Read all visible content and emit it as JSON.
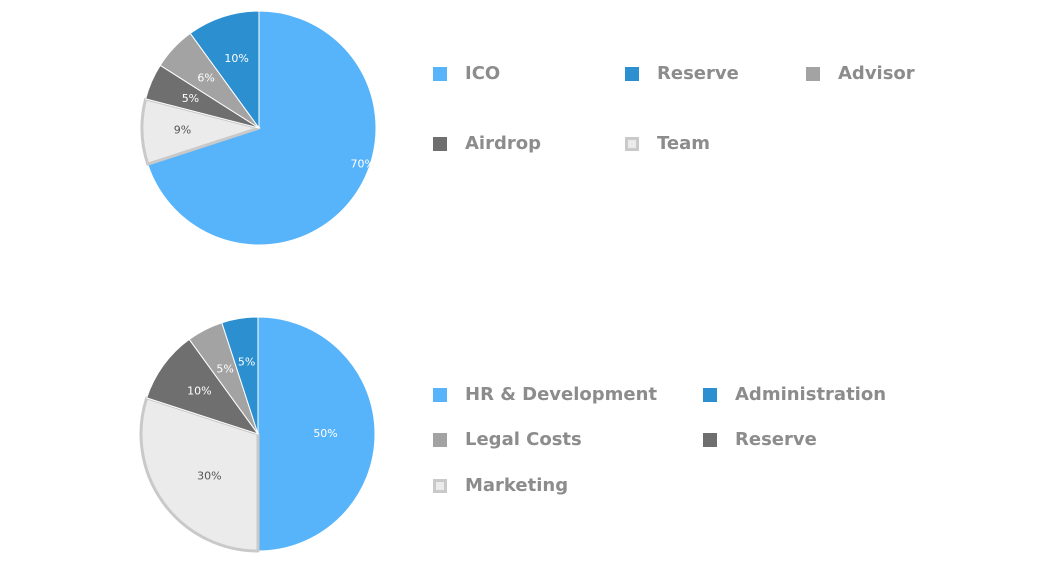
{
  "chart_data": [
    {
      "type": "pie",
      "title": "",
      "slices": [
        {
          "name": "ICO",
          "value": 70,
          "label": "70%",
          "color": "#57b4fb"
        },
        {
          "name": "Team",
          "value": 9,
          "label": "9%",
          "color": "#ebebeb",
          "stroke": "#c9c9c9"
        },
        {
          "name": "Airdrop",
          "value": 5,
          "label": "5%",
          "color": "#6f6f6f"
        },
        {
          "name": "Advisor",
          "value": 6,
          "label": "6%",
          "color": "#a3a3a3"
        },
        {
          "name": "Reserve",
          "value": 10,
          "label": "10%",
          "color": "#2b8fd0"
        }
      ],
      "legend": [
        {
          "label": "ICO",
          "color": "#57b4fb"
        },
        {
          "label": "Reserve",
          "color": "#2b8fd0"
        },
        {
          "label": "Advisor",
          "color": "#a3a3a3"
        },
        {
          "label": "Airdrop",
          "color": "#6f6f6f"
        },
        {
          "label": "Team",
          "color": "#ebebeb",
          "border": "#c9c9c9"
        }
      ]
    },
    {
      "type": "pie",
      "title": "",
      "slices": [
        {
          "name": "HR & Development",
          "value": 50,
          "label": "50%",
          "color": "#57b4fb"
        },
        {
          "name": "Marketing",
          "value": 30,
          "label": "30%",
          "color": "#ebebeb",
          "stroke": "#c9c9c9"
        },
        {
          "name": "Reserve",
          "value": 10,
          "label": "10%",
          "color": "#6f6f6f"
        },
        {
          "name": "Legal Costs",
          "value": 5,
          "label": "5%",
          "color": "#a3a3a3"
        },
        {
          "name": "Administration",
          "value": 5,
          "label": "5%",
          "color": "#2b8fd0"
        }
      ],
      "legend": [
        {
          "label": "HR & Development",
          "color": "#57b4fb"
        },
        {
          "label": "Administration",
          "color": "#2b8fd0"
        },
        {
          "label": "Legal Costs",
          "color": "#a3a3a3"
        },
        {
          "label": "Reserve",
          "color": "#6f6f6f"
        },
        {
          "label": "Marketing",
          "color": "#ebebeb",
          "border": "#c9c9c9"
        }
      ]
    }
  ]
}
